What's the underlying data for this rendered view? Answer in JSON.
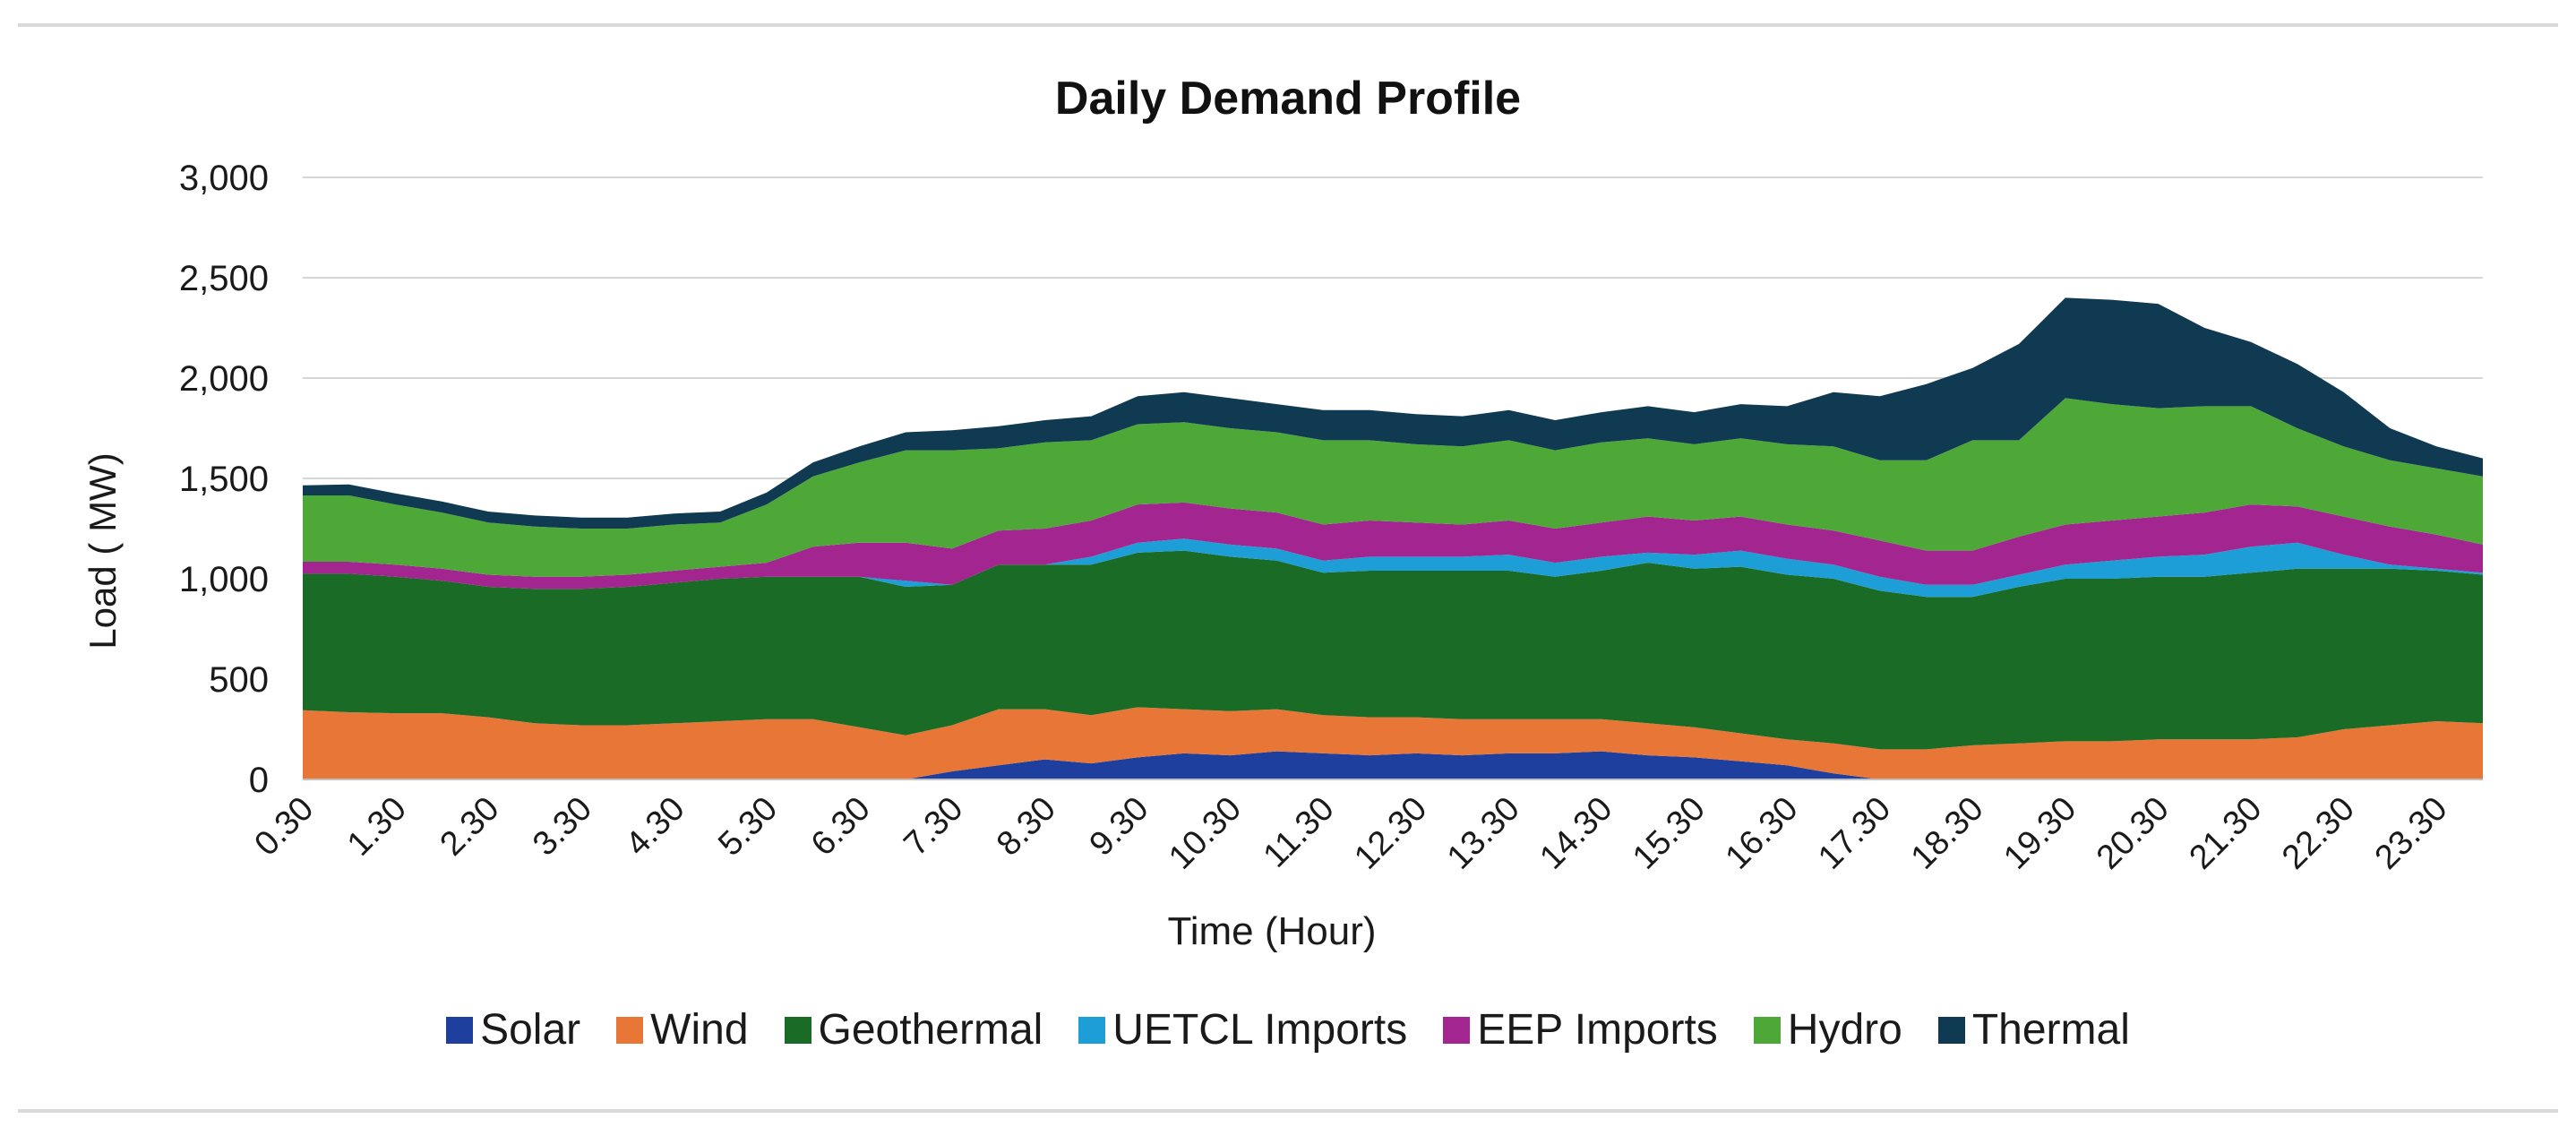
{
  "chart_data": {
    "type": "area",
    "title": "Daily Demand Profile",
    "xlabel": "Time (Hour)",
    "ylabel": "Load ( MW)",
    "ylim": [
      0,
      3000
    ],
    "yticks": [
      "0",
      "500",
      "1,000",
      "1,500",
      "2,000",
      "2,500",
      "3,000"
    ],
    "yticks_values": [
      0,
      500,
      1000,
      1500,
      2000,
      2500,
      3000
    ],
    "stacked": true,
    "grid": true,
    "legend_position": "bottom",
    "x": [
      "0.30",
      "1.00",
      "1.30",
      "2.00",
      "2.30",
      "3.00",
      "3.30",
      "4.00",
      "4.30",
      "5.00",
      "5.30",
      "6.00",
      "6.30",
      "7.00",
      "7.30",
      "8.00",
      "8.30",
      "9.00",
      "9.30",
      "10.00",
      "10.30",
      "11.00",
      "11.30",
      "12.00",
      "12.30",
      "13.00",
      "13.30",
      "14.00",
      "14.30",
      "15.00",
      "15.30",
      "16.00",
      "16.30",
      "17.00",
      "17.30",
      "18.00",
      "18.30",
      "19.00",
      "19.30",
      "20.00",
      "20.30",
      "21.00",
      "21.30",
      "22.00",
      "22.30",
      "23.00",
      "23.30",
      "0.00"
    ],
    "x_tick_labels": [
      "0.30",
      "1.30",
      "2.30",
      "3.30",
      "4.30",
      "5.30",
      "6.30",
      "7.30",
      "8.30",
      "9.30",
      "10.30",
      "11.30",
      "12.30",
      "13.30",
      "14.30",
      "15.30",
      "16.30",
      "17.30",
      "18.30",
      "19.30",
      "20.30",
      "21.30",
      "22.30",
      "23.30"
    ],
    "series": [
      {
        "name": "Solar",
        "color": "#1f3f9e",
        "values": [
          0,
          0,
          0,
          0,
          0,
          0,
          0,
          0,
          0,
          0,
          0,
          0,
          0,
          0,
          40,
          70,
          100,
          80,
          110,
          130,
          120,
          140,
          130,
          120,
          130,
          120,
          130,
          130,
          140,
          120,
          110,
          90,
          70,
          30,
          0,
          0,
          0,
          0,
          0,
          0,
          0,
          0,
          0,
          0,
          0,
          0,
          0,
          0
        ]
      },
      {
        "name": "Wind",
        "color": "#e87636",
        "values": [
          345,
          335,
          330,
          330,
          310,
          280,
          270,
          270,
          280,
          290,
          300,
          300,
          260,
          220,
          230,
          280,
          250,
          240,
          250,
          220,
          220,
          210,
          190,
          190,
          180,
          180,
          170,
          170,
          160,
          160,
          150,
          140,
          130,
          150,
          150,
          150,
          170,
          180,
          190,
          190,
          200,
          200,
          200,
          210,
          250,
          270,
          290,
          280
        ]
      },
      {
        "name": "Geothermal",
        "color": "#1a6b26",
        "values": [
          680,
          690,
          680,
          660,
          650,
          670,
          680,
          690,
          700,
          710,
          710,
          710,
          750,
          740,
          700,
          720,
          720,
          750,
          770,
          790,
          770,
          740,
          710,
          730,
          730,
          740,
          740,
          710,
          740,
          800,
          790,
          830,
          820,
          820,
          790,
          760,
          740,
          780,
          810,
          810,
          810,
          810,
          830,
          840,
          800,
          780,
          750,
          740
        ]
      },
      {
        "name": "UETCL Imports",
        "color": "#1e9ed6",
        "values": [
          0,
          0,
          0,
          0,
          0,
          0,
          0,
          0,
          0,
          0,
          0,
          0,
          0,
          30,
          0,
          0,
          0,
          40,
          50,
          60,
          60,
          60,
          60,
          70,
          70,
          70,
          80,
          70,
          70,
          50,
          70,
          80,
          80,
          70,
          70,
          60,
          60,
          60,
          70,
          90,
          100,
          110,
          130,
          130,
          70,
          20,
          10,
          10
        ]
      },
      {
        "name": "EEP Imports",
        "color": "#a3258f",
        "values": [
          60,
          60,
          60,
          60,
          60,
          60,
          60,
          60,
          60,
          60,
          70,
          150,
          170,
          190,
          180,
          170,
          180,
          180,
          190,
          180,
          180,
          180,
          180,
          180,
          170,
          160,
          170,
          170,
          170,
          180,
          170,
          170,
          170,
          170,
          180,
          170,
          170,
          190,
          200,
          200,
          200,
          210,
          210,
          180,
          190,
          190,
          170,
          140
        ]
      },
      {
        "name": "Hydro",
        "color": "#4da838",
        "values": [
          330,
          330,
          300,
          280,
          260,
          250,
          240,
          230,
          230,
          220,
          290,
          350,
          400,
          460,
          490,
          410,
          430,
          400,
          400,
          400,
          400,
          400,
          420,
          400,
          390,
          390,
          400,
          390,
          400,
          390,
          380,
          390,
          400,
          420,
          400,
          450,
          550,
          480,
          630,
          580,
          540,
          530,
          490,
          390,
          350,
          330,
          330,
          340
        ]
      },
      {
        "name": "Thermal",
        "color": "#0f3a52",
        "values": [
          50,
          55,
          55,
          55,
          55,
          55,
          55,
          55,
          55,
          55,
          60,
          70,
          80,
          90,
          100,
          110,
          110,
          120,
          140,
          150,
          150,
          140,
          150,
          150,
          150,
          150,
          150,
          150,
          150,
          160,
          160,
          170,
          190,
          270,
          320,
          380,
          360,
          480,
          500,
          520,
          520,
          390,
          320,
          320,
          270,
          160,
          110,
          90
        ]
      }
    ]
  }
}
